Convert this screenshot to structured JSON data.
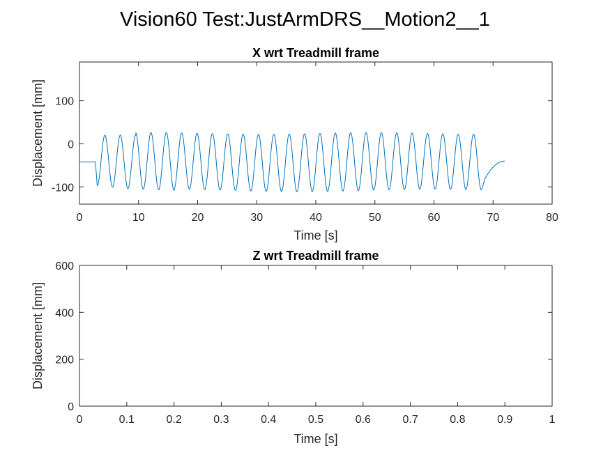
{
  "figure": {
    "title": "Vision60 Test:JustArmDRS__Motion2__1"
  },
  "chart_data": [
    {
      "type": "line",
      "title": "X wrt Treadmill frame",
      "xlabel": "Time [s]",
      "ylabel": "Displacement [mm]",
      "xlim": [
        0,
        80
      ],
      "ylim": [
        -140,
        190
      ],
      "xticks": [
        0,
        10,
        20,
        30,
        40,
        50,
        60,
        70,
        80
      ],
      "yticks": [
        -100,
        0,
        100
      ],
      "grid": false,
      "line_color": "#0072BD",
      "series": [
        {
          "waveform": "sinusoid",
          "pre_level": -42,
          "oscillation_start": 3.0,
          "oscillation_end": 68.2,
          "period": 2.6,
          "min_values": [
            -97,
            -104,
            -108
          ],
          "max_values": [
            20,
            24
          ],
          "post_min": -80,
          "end_time": 72.0,
          "end_value": -40
        }
      ]
    },
    {
      "type": "line",
      "title": "Z wrt Treadmill frame",
      "xlabel": "Time [s]",
      "ylabel": "Displacement [mm]",
      "xlim": [
        0,
        1
      ],
      "ylim": [
        0,
        600
      ],
      "xticks": [
        0,
        0.1,
        0.2,
        0.3,
        0.4,
        0.5,
        0.6,
        0.7,
        0.8,
        0.9,
        1
      ],
      "yticks": [
        0,
        200,
        400,
        600
      ],
      "grid": false,
      "series": []
    }
  ]
}
